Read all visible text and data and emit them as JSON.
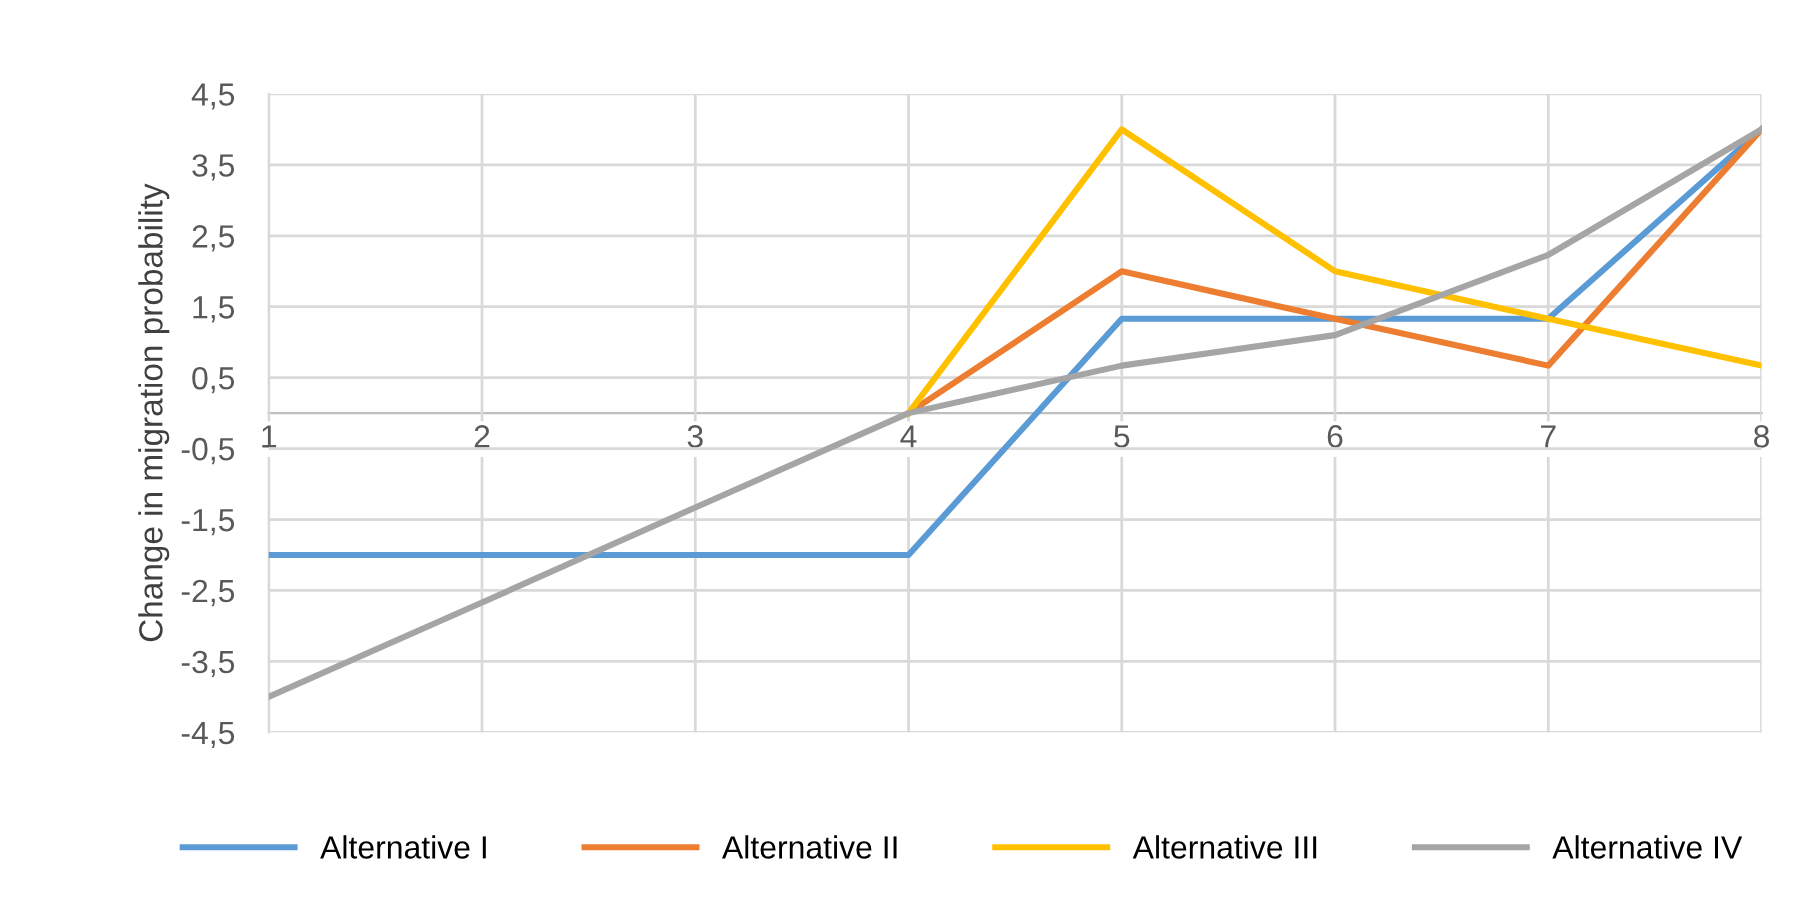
{
  "chart_data": {
    "type": "line",
    "ylabel": "Change in migration probability",
    "x": [
      1,
      2,
      3,
      4,
      5,
      6,
      7,
      8
    ],
    "xlim": [
      1,
      8
    ],
    "xticks": [
      1,
      2,
      3,
      4,
      5,
      6,
      7,
      8
    ],
    "ylim": [
      -4.5,
      4.5
    ],
    "yticks": [
      {
        "value": -4.5,
        "label": "-4,5"
      },
      {
        "value": -3.5,
        "label": "-3,5"
      },
      {
        "value": -2.5,
        "label": "-2,5"
      },
      {
        "value": -1.5,
        "label": "-1,5"
      },
      {
        "value": -0.5,
        "label": "-0,5"
      },
      {
        "value": 0.5,
        "label": "0,5"
      },
      {
        "value": 1.5,
        "label": "1,5"
      },
      {
        "value": 2.5,
        "label": "2,5"
      },
      {
        "value": 3.5,
        "label": "3,5"
      },
      {
        "value": 4.5,
        "label": "4,5"
      }
    ],
    "grid": true,
    "legend": "bottom",
    "marker": "none",
    "line_style": "solid",
    "series": [
      {
        "name": "Alternative I",
        "color": "#5b9bd5",
        "values": [
          -2,
          -2,
          -2,
          -2,
          1.33,
          1.33,
          1.33,
          4
        ]
      },
      {
        "name": "Alternative II",
        "color": "#ed7d31",
        "values": [
          null,
          null,
          null,
          0,
          2,
          1.33,
          0.67,
          4
        ]
      },
      {
        "name": "Alternative III",
        "color": "#ffc000",
        "values": [
          null,
          null,
          null,
          0,
          4,
          2,
          1.33,
          0.67
        ]
      },
      {
        "name": "Alternative IV",
        "color": "#a5a5a5",
        "values": [
          -4,
          -2.67,
          -1.33,
          0,
          0.67,
          1.1,
          2.23,
          4
        ]
      }
    ]
  }
}
